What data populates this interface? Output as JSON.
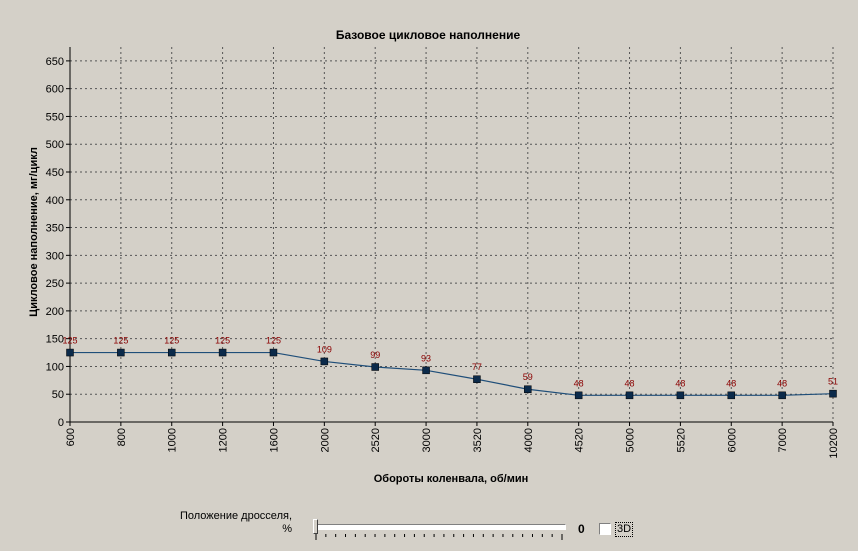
{
  "chart_data": {
    "type": "line",
    "title": "Базовое цикловое наполнение",
    "xlabel": "Обороты коленвала, об/мин",
    "ylabel": "Цикловое наполнение, мг/цикл",
    "categories": [
      "600",
      "800",
      "1000",
      "1200",
      "1600",
      "2000",
      "2520",
      "3000",
      "3520",
      "4000",
      "4520",
      "5000",
      "5520",
      "6000",
      "7000",
      "10200"
    ],
    "series": [
      {
        "values": [
          125,
          125,
          125,
          125,
          125,
          109,
          99,
          93,
          77,
          59,
          48,
          48,
          48,
          48,
          48,
          51
        ]
      }
    ],
    "ylim": [
      0,
      675
    ],
    "yticks": [
      0,
      50,
      100,
      150,
      200,
      250,
      300,
      350,
      400,
      450,
      500,
      550,
      600,
      650
    ],
    "grid": true,
    "legend": "none",
    "line_color": "#1f4e79",
    "marker_color": "#0b2a4a",
    "label_color": "#8b0000"
  },
  "controls": {
    "throttle_label_line1": "Положение дросселя,",
    "throttle_label_line2": "%",
    "throttle_value": "0",
    "throttle_fraction": 0,
    "checkbox_3d_label": "3D",
    "checkbox_3d_checked": false
  }
}
